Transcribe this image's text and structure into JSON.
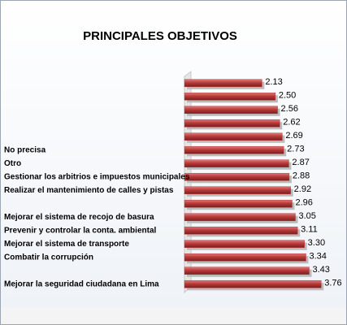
{
  "chart_data": {
    "type": "bar",
    "orientation": "horizontal",
    "title": "PRINCIPALES OBJETIVOS",
    "categories": [
      null,
      null,
      null,
      null,
      null,
      "No precisa",
      "Otro",
      "Gestionar  los arbitrios e impuestos municipales",
      "Realizar el mantenimiento de calles y pistas",
      null,
      "Mejorar el sistema de recojo de basura",
      "Prevenir y controlar la conta. ambiental",
      "Mejorar el sistema de transporte",
      "Combatir la corrupción",
      null,
      "Mejorar la seguridad ciudadana en Lima"
    ],
    "values": [
      2.13,
      2.5,
      2.56,
      2.62,
      2.69,
      2.73,
      2.87,
      2.88,
      2.92,
      2.96,
      3.05,
      3.11,
      3.3,
      3.34,
      3.43,
      3.76
    ],
    "value_labels": [
      "2.13",
      "2.50",
      "2.56",
      "2.62",
      "2.69",
      "2.73",
      "2.87",
      "2.88",
      "2.92",
      "2.96",
      "3.05",
      "3.11",
      "3.30",
      "3.34",
      "3.43",
      "3.76"
    ],
    "color": "#b83a3a",
    "xlim": [
      0,
      4
    ]
  }
}
